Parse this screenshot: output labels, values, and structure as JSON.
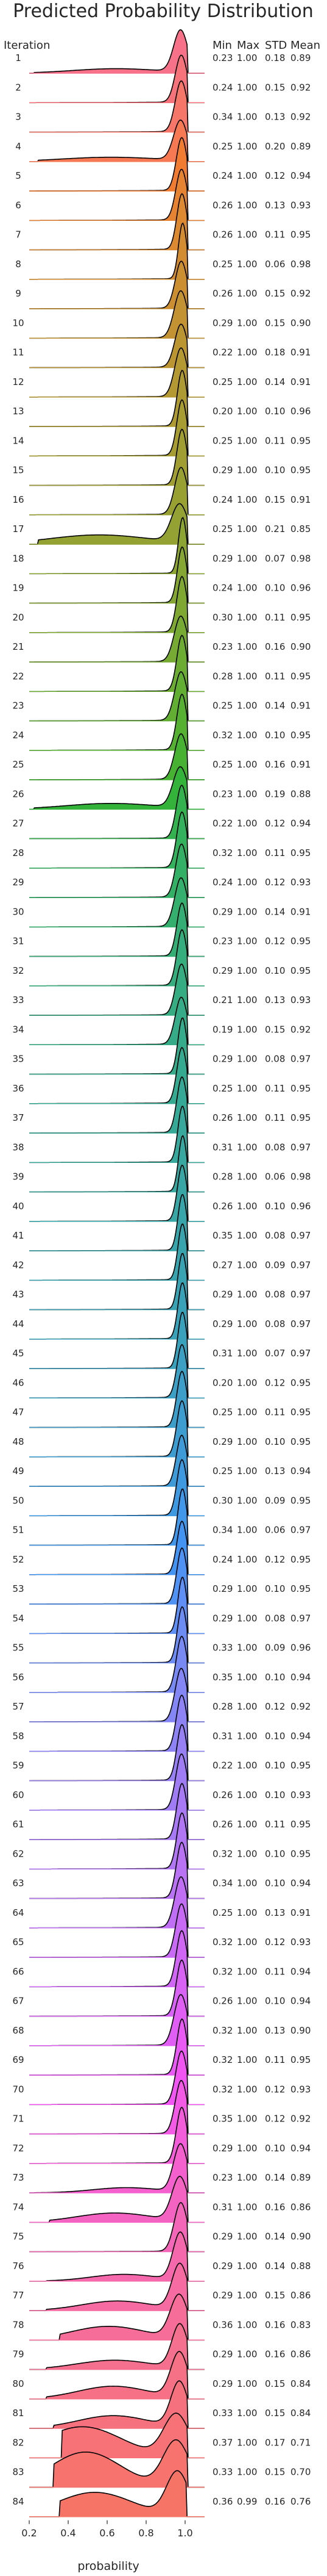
{
  "chart_data": {
    "type": "ridgeline",
    "title": "Predicted Probability Distribution",
    "ylabel": "Iteration",
    "xlabel": "probability",
    "xlim": [
      0.2,
      1.1
    ],
    "xticks": [
      "0.2",
      "0.4",
      "0.6",
      "0.8",
      "1.0"
    ],
    "stat_headers": [
      "Min",
      "Max",
      "STD",
      "Mean"
    ],
    "rows": [
      {
        "iteration": "1",
        "min": "0.23",
        "max": "1.00",
        "std": "0.18",
        "mean": "0.89",
        "color": "#f77189"
      },
      {
        "iteration": "2",
        "min": "0.24",
        "max": "1.00",
        "std": "0.15",
        "mean": "0.92",
        "color": "#f7737b"
      },
      {
        "iteration": "3",
        "min": "0.34",
        "max": "1.00",
        "std": "0.13",
        "mean": "0.92",
        "color": "#f7766a"
      },
      {
        "iteration": "4",
        "min": "0.25",
        "max": "1.00",
        "std": "0.20",
        "mean": "0.89",
        "color": "#f77953"
      },
      {
        "iteration": "5",
        "min": "0.24",
        "max": "1.00",
        "std": "0.12",
        "mean": "0.94",
        "color": "#f17c31"
      },
      {
        "iteration": "6",
        "min": "0.26",
        "max": "1.00",
        "std": "0.13",
        "mean": "0.93",
        "color": "#e68332"
      },
      {
        "iteration": "7",
        "min": "0.26",
        "max": "1.00",
        "std": "0.11",
        "mean": "0.95",
        "color": "#dc8932"
      },
      {
        "iteration": "8",
        "min": "0.25",
        "max": "1.00",
        "std": "0.06",
        "mean": "0.98",
        "color": "#d38c32"
      },
      {
        "iteration": "9",
        "min": "0.26",
        "max": "1.00",
        "std": "0.15",
        "mean": "0.92",
        "color": "#cb8f32"
      },
      {
        "iteration": "10",
        "min": "0.29",
        "max": "1.00",
        "std": "0.15",
        "mean": "0.90",
        "color": "#c39232"
      },
      {
        "iteration": "11",
        "min": "0.22",
        "max": "1.00",
        "std": "0.18",
        "mean": "0.91",
        "color": "#bb9532"
      },
      {
        "iteration": "12",
        "min": "0.25",
        "max": "1.00",
        "std": "0.14",
        "mean": "0.91",
        "color": "#b49832"
      },
      {
        "iteration": "13",
        "min": "0.20",
        "max": "1.00",
        "std": "0.10",
        "mean": "0.96",
        "color": "#ad9a32"
      },
      {
        "iteration": "14",
        "min": "0.25",
        "max": "1.00",
        "std": "0.11",
        "mean": "0.95",
        "color": "#a69c32"
      },
      {
        "iteration": "15",
        "min": "0.29",
        "max": "1.00",
        "std": "0.10",
        "mean": "0.95",
        "color": "#a09e32"
      },
      {
        "iteration": "16",
        "min": "0.24",
        "max": "1.00",
        "std": "0.15",
        "mean": "0.91",
        "color": "#99a032"
      },
      {
        "iteration": "17",
        "min": "0.25",
        "max": "1.00",
        "std": "0.21",
        "mean": "0.85",
        "color": "#93a232"
      },
      {
        "iteration": "18",
        "min": "0.29",
        "max": "1.00",
        "std": "0.07",
        "mean": "0.98",
        "color": "#8ca432"
      },
      {
        "iteration": "19",
        "min": "0.24",
        "max": "1.00",
        "std": "0.10",
        "mean": "0.96",
        "color": "#85a632"
      },
      {
        "iteration": "20",
        "min": "0.30",
        "max": "1.00",
        "std": "0.11",
        "mean": "0.95",
        "color": "#7ea832"
      },
      {
        "iteration": "21",
        "min": "0.23",
        "max": "1.00",
        "std": "0.16",
        "mean": "0.90",
        "color": "#76aa32"
      },
      {
        "iteration": "22",
        "min": "0.28",
        "max": "1.00",
        "std": "0.11",
        "mean": "0.95",
        "color": "#6dac32"
      },
      {
        "iteration": "23",
        "min": "0.25",
        "max": "1.00",
        "std": "0.14",
        "mean": "0.91",
        "color": "#62ae32"
      },
      {
        "iteration": "24",
        "min": "0.32",
        "max": "1.00",
        "std": "0.10",
        "mean": "0.95",
        "color": "#56b032"
      },
      {
        "iteration": "25",
        "min": "0.25",
        "max": "1.00",
        "std": "0.16",
        "mean": "0.91",
        "color": "#47b232"
      },
      {
        "iteration": "26",
        "min": "0.23",
        "max": "1.00",
        "std": "0.19",
        "mean": "0.88",
        "color": "#34b33b"
      },
      {
        "iteration": "27",
        "min": "0.22",
        "max": "1.00",
        "std": "0.12",
        "mean": "0.94",
        "color": "#33b24f"
      },
      {
        "iteration": "28",
        "min": "0.32",
        "max": "1.00",
        "std": "0.11",
        "mean": "0.95",
        "color": "#33b15c"
      },
      {
        "iteration": "29",
        "min": "0.24",
        "max": "1.00",
        "std": "0.12",
        "mean": "0.93",
        "color": "#33b066"
      },
      {
        "iteration": "30",
        "min": "0.29",
        "max": "1.00",
        "std": "0.14",
        "mean": "0.91",
        "color": "#34af6e"
      },
      {
        "iteration": "31",
        "min": "0.23",
        "max": "1.00",
        "std": "0.12",
        "mean": "0.95",
        "color": "#34ae75"
      },
      {
        "iteration": "32",
        "min": "0.29",
        "max": "1.00",
        "std": "0.10",
        "mean": "0.95",
        "color": "#35ad7c"
      },
      {
        "iteration": "33",
        "min": "0.21",
        "max": "1.00",
        "std": "0.13",
        "mean": "0.93",
        "color": "#35ac82"
      },
      {
        "iteration": "34",
        "min": "0.19",
        "max": "1.00",
        "std": "0.15",
        "mean": "0.92",
        "color": "#35ab87"
      },
      {
        "iteration": "35",
        "min": "0.29",
        "max": "1.00",
        "std": "0.08",
        "mean": "0.97",
        "color": "#36ab8c"
      },
      {
        "iteration": "36",
        "min": "0.25",
        "max": "1.00",
        "std": "0.11",
        "mean": "0.95",
        "color": "#36aa91"
      },
      {
        "iteration": "37",
        "min": "0.26",
        "max": "1.00",
        "std": "0.11",
        "mean": "0.95",
        "color": "#36a996"
      },
      {
        "iteration": "38",
        "min": "0.31",
        "max": "1.00",
        "std": "0.08",
        "mean": "0.97",
        "color": "#37a89b"
      },
      {
        "iteration": "39",
        "min": "0.28",
        "max": "1.00",
        "std": "0.06",
        "mean": "0.98",
        "color": "#37a7a0"
      },
      {
        "iteration": "40",
        "min": "0.26",
        "max": "1.00",
        "std": "0.10",
        "mean": "0.96",
        "color": "#38a6a5"
      },
      {
        "iteration": "41",
        "min": "0.35",
        "max": "1.00",
        "std": "0.08",
        "mean": "0.97",
        "color": "#38a5aa"
      },
      {
        "iteration": "42",
        "min": "0.27",
        "max": "1.00",
        "std": "0.09",
        "mean": "0.97",
        "color": "#39a4ae"
      },
      {
        "iteration": "43",
        "min": "0.29",
        "max": "1.00",
        "std": "0.08",
        "mean": "0.97",
        "color": "#39a3b3"
      },
      {
        "iteration": "44",
        "min": "0.29",
        "max": "1.00",
        "std": "0.08",
        "mean": "0.97",
        "color": "#3aa2b8"
      },
      {
        "iteration": "45",
        "min": "0.31",
        "max": "1.00",
        "std": "0.07",
        "mean": "0.97",
        "color": "#3aa1bd"
      },
      {
        "iteration": "46",
        "min": "0.20",
        "max": "1.00",
        "std": "0.12",
        "mean": "0.95",
        "color": "#3ba0c3"
      },
      {
        "iteration": "47",
        "min": "0.25",
        "max": "1.00",
        "std": "0.11",
        "mean": "0.95",
        "color": "#3c9ec9"
      },
      {
        "iteration": "48",
        "min": "0.29",
        "max": "1.00",
        "std": "0.10",
        "mean": "0.95",
        "color": "#3d9dd0"
      },
      {
        "iteration": "49",
        "min": "0.25",
        "max": "1.00",
        "std": "0.13",
        "mean": "0.94",
        "color": "#3e9bd7"
      },
      {
        "iteration": "50",
        "min": "0.30",
        "max": "1.00",
        "std": "0.09",
        "mean": "0.95",
        "color": "#3f99e0"
      },
      {
        "iteration": "51",
        "min": "0.34",
        "max": "1.00",
        "std": "0.06",
        "mean": "0.97",
        "color": "#4197e9"
      },
      {
        "iteration": "52",
        "min": "0.24",
        "max": "1.00",
        "std": "0.12",
        "mean": "0.95",
        "color": "#4394f2"
      },
      {
        "iteration": "53",
        "min": "0.29",
        "max": "1.00",
        "std": "0.10",
        "mean": "0.95",
        "color": "#4f92f4"
      },
      {
        "iteration": "54",
        "min": "0.29",
        "max": "1.00",
        "std": "0.08",
        "mean": "0.97",
        "color": "#5f8ff4"
      },
      {
        "iteration": "55",
        "min": "0.33",
        "max": "1.00",
        "std": "0.09",
        "mean": "0.96",
        "color": "#6c8cf4"
      },
      {
        "iteration": "56",
        "min": "0.35",
        "max": "1.00",
        "std": "0.10",
        "mean": "0.94",
        "color": "#7889f4"
      },
      {
        "iteration": "57",
        "min": "0.28",
        "max": "1.00",
        "std": "0.12",
        "mean": "0.92",
        "color": "#8386f4"
      },
      {
        "iteration": "58",
        "min": "0.31",
        "max": "1.00",
        "std": "0.10",
        "mean": "0.94",
        "color": "#8d83f4"
      },
      {
        "iteration": "59",
        "min": "0.22",
        "max": "1.00",
        "std": "0.10",
        "mean": "0.95",
        "color": "#9780f4"
      },
      {
        "iteration": "60",
        "min": "0.26",
        "max": "1.00",
        "std": "0.10",
        "mean": "0.93",
        "color": "#a07cf4"
      },
      {
        "iteration": "61",
        "min": "0.26",
        "max": "1.00",
        "std": "0.11",
        "mean": "0.95",
        "color": "#a879f4"
      },
      {
        "iteration": "62",
        "min": "0.32",
        "max": "1.00",
        "std": "0.10",
        "mean": "0.95",
        "color": "#b176f4"
      },
      {
        "iteration": "63",
        "min": "0.34",
        "max": "1.00",
        "std": "0.10",
        "mean": "0.94",
        "color": "#b972f4"
      },
      {
        "iteration": "64",
        "min": "0.25",
        "max": "1.00",
        "std": "0.13",
        "mean": "0.91",
        "color": "#c06ef4"
      },
      {
        "iteration": "65",
        "min": "0.32",
        "max": "1.00",
        "std": "0.12",
        "mean": "0.93",
        "color": "#c86af4"
      },
      {
        "iteration": "66",
        "min": "0.32",
        "max": "1.00",
        "std": "0.11",
        "mean": "0.94",
        "color": "#d066f4"
      },
      {
        "iteration": "67",
        "min": "0.26",
        "max": "1.00",
        "std": "0.10",
        "mean": "0.94",
        "color": "#d862f4"
      },
      {
        "iteration": "68",
        "min": "0.32",
        "max": "1.00",
        "std": "0.13",
        "mean": "0.90",
        "color": "#e05ef4"
      },
      {
        "iteration": "69",
        "min": "0.32",
        "max": "1.00",
        "std": "0.11",
        "mean": "0.95",
        "color": "#e95af4"
      },
      {
        "iteration": "70",
        "min": "0.32",
        "max": "1.00",
        "std": "0.12",
        "mean": "0.93",
        "color": "#f156f2"
      },
      {
        "iteration": "71",
        "min": "0.35",
        "max": "1.00",
        "std": "0.12",
        "mean": "0.92",
        "color": "#f35ae5"
      },
      {
        "iteration": "72",
        "min": "0.29",
        "max": "1.00",
        "std": "0.10",
        "mean": "0.94",
        "color": "#f45dd9"
      },
      {
        "iteration": "73",
        "min": "0.23",
        "max": "1.00",
        "std": "0.14",
        "mean": "0.89",
        "color": "#f460cd"
      },
      {
        "iteration": "74",
        "min": "0.31",
        "max": "1.00",
        "std": "0.16",
        "mean": "0.86",
        "color": "#f463c2"
      },
      {
        "iteration": "75",
        "min": "0.29",
        "max": "1.00",
        "std": "0.14",
        "mean": "0.90",
        "color": "#f466b7"
      },
      {
        "iteration": "76",
        "min": "0.29",
        "max": "1.00",
        "std": "0.14",
        "mean": "0.88",
        "color": "#f569ac"
      },
      {
        "iteration": "77",
        "min": "0.29",
        "max": "1.00",
        "std": "0.15",
        "mean": "0.86",
        "color": "#f56ba2"
      },
      {
        "iteration": "78",
        "min": "0.36",
        "max": "1.00",
        "std": "0.16",
        "mean": "0.83",
        "color": "#f56d98"
      },
      {
        "iteration": "79",
        "min": "0.29",
        "max": "1.00",
        "std": "0.16",
        "mean": "0.86",
        "color": "#f56f8f"
      },
      {
        "iteration": "80",
        "min": "0.29",
        "max": "1.00",
        "std": "0.15",
        "mean": "0.84",
        "color": "#f67086"
      },
      {
        "iteration": "81",
        "min": "0.33",
        "max": "1.00",
        "std": "0.15",
        "mean": "0.84",
        "color": "#f6717e"
      },
      {
        "iteration": "82",
        "min": "0.37",
        "max": "1.00",
        "std": "0.17",
        "mean": "0.71",
        "color": "#f67276"
      },
      {
        "iteration": "83",
        "min": "0.33",
        "max": "1.00",
        "std": "0.15",
        "mean": "0.70",
        "color": "#f6736e"
      },
      {
        "iteration": "84",
        "min": "0.36",
        "max": "0.99",
        "std": "0.16",
        "mean": "0.76",
        "color": "#f67466"
      }
    ]
  }
}
